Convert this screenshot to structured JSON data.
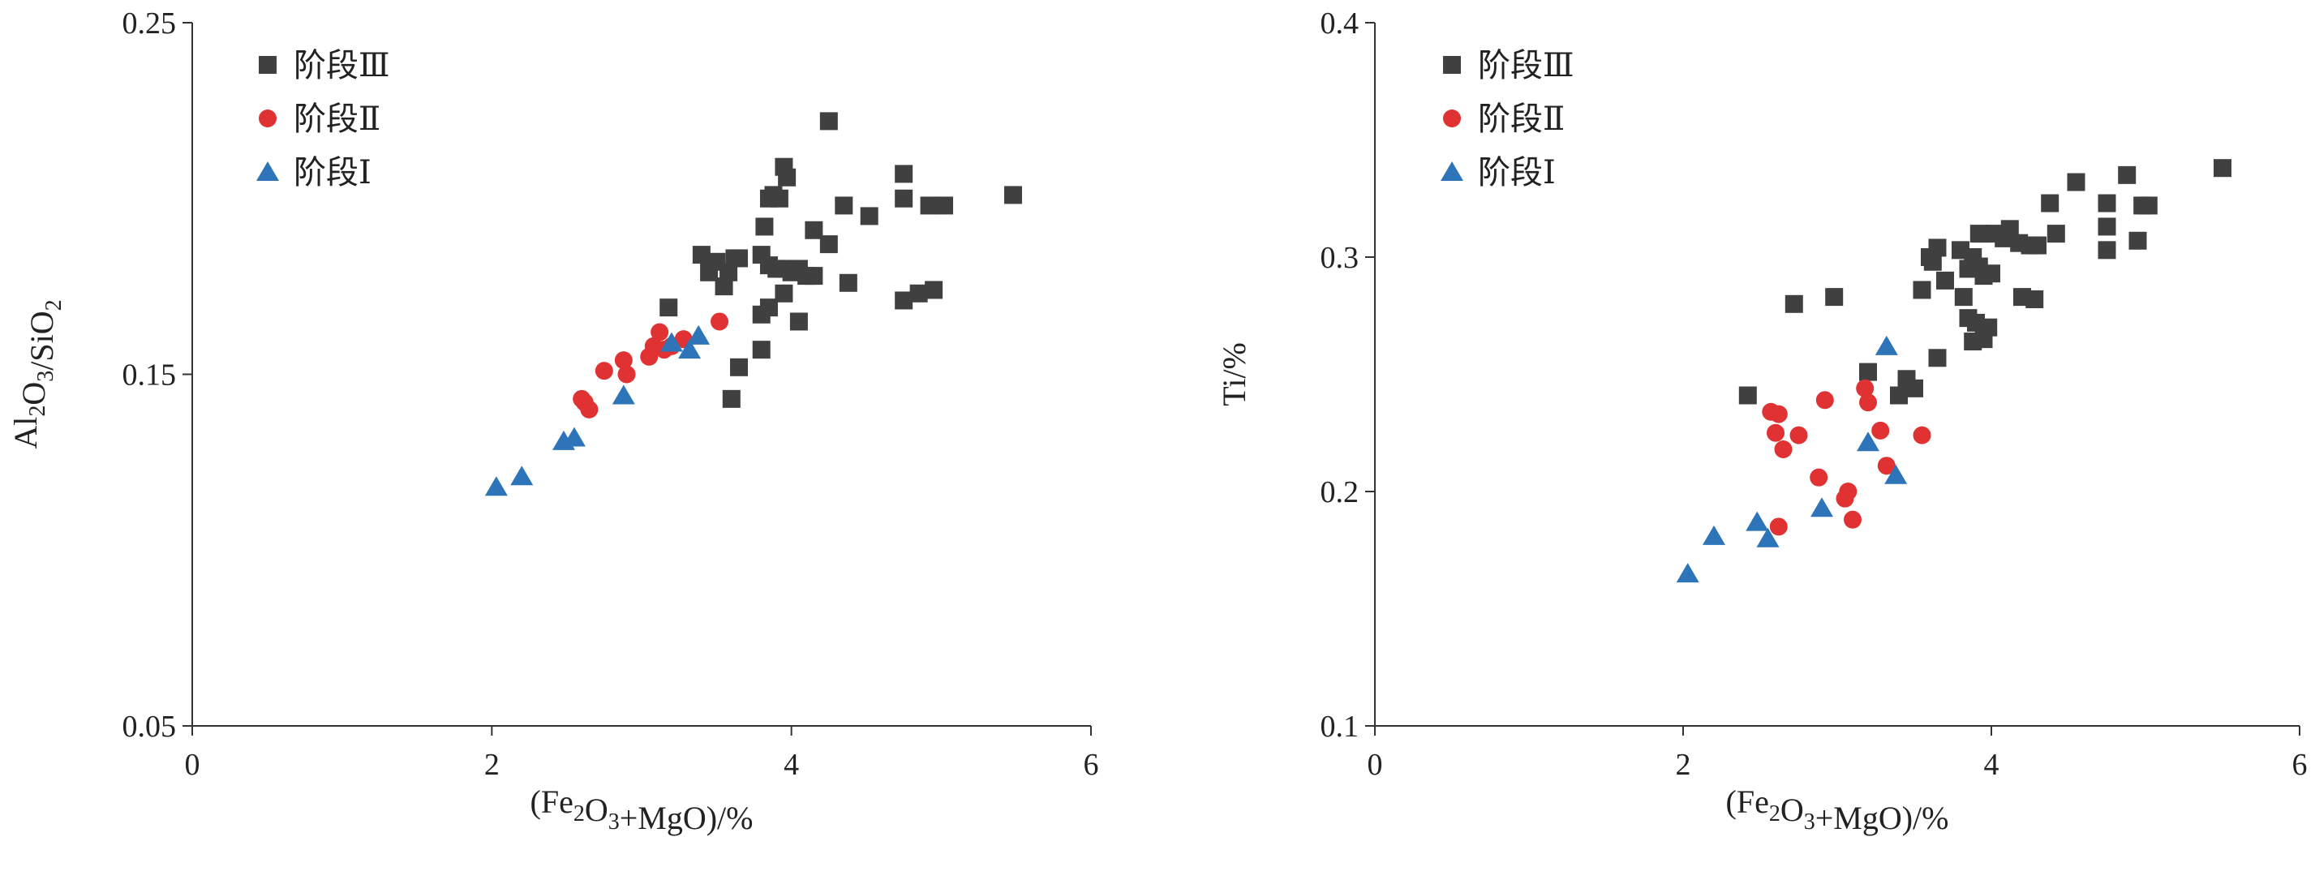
{
  "chart_data": [
    {
      "type": "scatter",
      "xlabel": "(Fe2O3+MgO)/%",
      "ylabel": "Al2O3/SiO2",
      "xlim": [
        0,
        6
      ],
      "ylim": [
        0.05,
        0.25
      ],
      "xticks": [
        0,
        2,
        4,
        6
      ],
      "yticks": [
        0.05,
        0.15,
        0.25
      ],
      "x_tick_labels": [
        "0",
        "2",
        "4",
        "6"
      ],
      "y_tick_labels": [
        "0.05",
        "0.15",
        "0.25"
      ],
      "grid": false,
      "legend_position": "top-left",
      "series": [
        {
          "name": "阶段Ⅲ",
          "marker": "square",
          "color": "#404040",
          "points": [
            [
              3.18,
              0.169
            ],
            [
              3.4,
              0.184
            ],
            [
              3.45,
              0.179
            ],
            [
              3.5,
              0.182
            ],
            [
              3.55,
              0.175
            ],
            [
              3.58,
              0.179
            ],
            [
              3.62,
              0.183
            ],
            [
              3.65,
              0.183
            ],
            [
              3.6,
              0.143
            ],
            [
              3.65,
              0.152
            ],
            [
              3.8,
              0.157
            ],
            [
              3.8,
              0.167
            ],
            [
              3.85,
              0.169
            ],
            [
              3.8,
              0.184
            ],
            [
              3.85,
              0.181
            ],
            [
              3.9,
              0.18
            ],
            [
              3.95,
              0.18
            ],
            [
              4.0,
              0.179
            ],
            [
              4.05,
              0.18
            ],
            [
              4.1,
              0.178
            ],
            [
              4.15,
              0.178
            ],
            [
              3.95,
              0.173
            ],
            [
              4.05,
              0.165
            ],
            [
              3.82,
              0.192
            ],
            [
              3.85,
              0.2
            ],
            [
              3.88,
              0.201
            ],
            [
              3.92,
              0.2
            ],
            [
              3.95,
              0.209
            ],
            [
              3.97,
              0.206
            ],
            [
              4.15,
              0.191
            ],
            [
              4.25,
              0.187
            ],
            [
              4.25,
              0.222
            ],
            [
              4.35,
              0.198
            ],
            [
              4.38,
              0.176
            ],
            [
              4.52,
              0.195
            ],
            [
              4.75,
              0.207
            ],
            [
              4.75,
              0.2
            ],
            [
              4.75,
              0.171
            ],
            [
              4.85,
              0.173
            ],
            [
              4.92,
              0.198
            ],
            [
              4.95,
              0.174
            ],
            [
              5.02,
              0.198
            ],
            [
              5.48,
              0.201
            ]
          ]
        },
        {
          "name": "阶段Ⅱ",
          "marker": "circle",
          "color": "#e03232",
          "points": [
            [
              2.6,
              0.143
            ],
            [
              2.62,
              0.142
            ],
            [
              2.65,
              0.14
            ],
            [
              2.75,
              0.151
            ],
            [
              2.88,
              0.154
            ],
            [
              2.9,
              0.15
            ],
            [
              3.05,
              0.155
            ],
            [
              3.08,
              0.158
            ],
            [
              3.12,
              0.162
            ],
            [
              3.15,
              0.157
            ],
            [
              3.2,
              0.158
            ],
            [
              3.28,
              0.16
            ],
            [
              3.52,
              0.165
            ]
          ]
        },
        {
          "name": "阶段Ⅰ",
          "marker": "triangle",
          "color": "#2e74b8",
          "points": [
            [
              2.03,
              0.118
            ],
            [
              2.2,
              0.121
            ],
            [
              2.48,
              0.131
            ],
            [
              2.55,
              0.132
            ],
            [
              2.88,
              0.144
            ],
            [
              3.2,
              0.159
            ],
            [
              3.32,
              0.157
            ],
            [
              3.38,
              0.161
            ]
          ]
        }
      ]
    },
    {
      "type": "scatter",
      "xlabel": "(Fe2O3+MgO)/%",
      "ylabel": "Ti/%",
      "xlim": [
        0,
        6
      ],
      "ylim": [
        0.1,
        0.4
      ],
      "xticks": [
        0,
        2,
        4,
        6
      ],
      "yticks": [
        0.1,
        0.2,
        0.3,
        0.4
      ],
      "x_tick_labels": [
        "0",
        "2",
        "4",
        "6"
      ],
      "y_tick_labels": [
        "0.1",
        "0.2",
        "0.3",
        "0.4"
      ],
      "grid": false,
      "legend_position": "top-left",
      "series": [
        {
          "name": "阶段Ⅲ",
          "marker": "square",
          "color": "#404040",
          "points": [
            [
              2.42,
              0.241
            ],
            [
              2.72,
              0.28
            ],
            [
              2.98,
              0.283
            ],
            [
              3.2,
              0.251
            ],
            [
              3.4,
              0.241
            ],
            [
              3.45,
              0.248
            ],
            [
              3.5,
              0.244
            ],
            [
              3.55,
              0.286
            ],
            [
              3.6,
              0.3
            ],
            [
              3.62,
              0.298
            ],
            [
              3.65,
              0.304
            ],
            [
              3.65,
              0.257
            ],
            [
              3.7,
              0.29
            ],
            [
              3.8,
              0.303
            ],
            [
              3.82,
              0.283
            ],
            [
              3.85,
              0.295
            ],
            [
              3.88,
              0.3
            ],
            [
              3.92,
              0.296
            ],
            [
              3.95,
              0.292
            ],
            [
              4.0,
              0.293
            ],
            [
              3.85,
              0.274
            ],
            [
              3.9,
              0.272
            ],
            [
              3.95,
              0.265
            ],
            [
              3.98,
              0.27
            ],
            [
              3.88,
              0.264
            ],
            [
              3.92,
              0.31
            ],
            [
              4.02,
              0.31
            ],
            [
              4.08,
              0.308
            ],
            [
              4.12,
              0.312
            ],
            [
              4.18,
              0.306
            ],
            [
              4.25,
              0.305
            ],
            [
              4.3,
              0.305
            ],
            [
              4.2,
              0.283
            ],
            [
              4.28,
              0.282
            ],
            [
              4.38,
              0.323
            ],
            [
              4.42,
              0.31
            ],
            [
              4.55,
              0.332
            ],
            [
              4.75,
              0.323
            ],
            [
              4.75,
              0.313
            ],
            [
              4.75,
              0.303
            ],
            [
              4.88,
              0.335
            ],
            [
              4.95,
              0.307
            ],
            [
              4.98,
              0.322
            ],
            [
              5.02,
              0.322
            ],
            [
              5.5,
              0.338
            ]
          ]
        },
        {
          "name": "阶段Ⅱ",
          "marker": "circle",
          "color": "#e03232",
          "points": [
            [
              2.57,
              0.234
            ],
            [
              2.6,
              0.225
            ],
            [
              2.62,
              0.233
            ],
            [
              2.65,
              0.218
            ],
            [
              2.75,
              0.224
            ],
            [
              2.62,
              0.185
            ],
            [
              2.88,
              0.206
            ],
            [
              2.92,
              0.239
            ],
            [
              3.05,
              0.197
            ],
            [
              3.07,
              0.2
            ],
            [
              3.1,
              0.188
            ],
            [
              3.18,
              0.244
            ],
            [
              3.2,
              0.238
            ],
            [
              3.28,
              0.226
            ],
            [
              3.32,
              0.211
            ],
            [
              3.55,
              0.224
            ]
          ]
        },
        {
          "name": "阶段Ⅰ",
          "marker": "triangle",
          "color": "#2e74b8",
          "points": [
            [
              2.03,
              0.165
            ],
            [
              2.2,
              0.181
            ],
            [
              2.48,
              0.187
            ],
            [
              2.55,
              0.18
            ],
            [
              2.9,
              0.193
            ],
            [
              3.2,
              0.221
            ],
            [
              3.32,
              0.262
            ],
            [
              3.38,
              0.207
            ]
          ]
        }
      ]
    }
  ]
}
